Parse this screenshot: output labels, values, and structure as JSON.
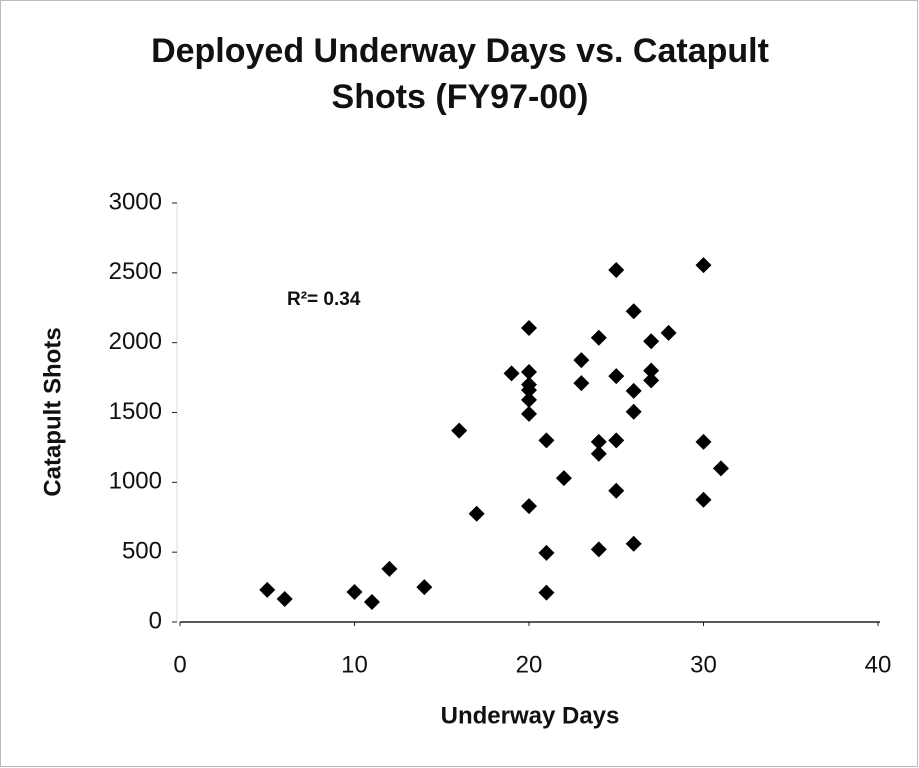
{
  "chart_data": {
    "type": "scatter",
    "title": "Deployed Underway Days vs. Catapult Shots (FY97-00)",
    "xlabel": "Underway Days",
    "ylabel": "Catapult Shots",
    "annotation": "R²= 0.34",
    "color": "#000000",
    "xlim": [
      0,
      40
    ],
    "xticks": [
      0,
      10,
      20,
      30,
      40
    ],
    "ylim": [
      0,
      3000
    ],
    "yticks": [
      0,
      500,
      1000,
      1500,
      2000,
      2500,
      3000
    ],
    "x": [
      5,
      6,
      10,
      11,
      12,
      14,
      16,
      17,
      19,
      20,
      20,
      20,
      20,
      20,
      20,
      20,
      21,
      21,
      21,
      22,
      23,
      23,
      24,
      24,
      24,
      24,
      25,
      25,
      25,
      25,
      26,
      26,
      26,
      26,
      27,
      27,
      27,
      28,
      30,
      30,
      30,
      31
    ],
    "values": [
      230,
      165,
      215,
      143,
      380,
      250,
      1370,
      775,
      1780,
      2105,
      1790,
      1700,
      1660,
      1590,
      1490,
      830,
      1300,
      495,
      210,
      1030,
      1875,
      1710,
      2035,
      1290,
      1205,
      520,
      2520,
      1760,
      1300,
      940,
      2225,
      1655,
      1505,
      560,
      2010,
      1800,
      1730,
      2070,
      2555,
      1290,
      875,
      1100
    ]
  }
}
